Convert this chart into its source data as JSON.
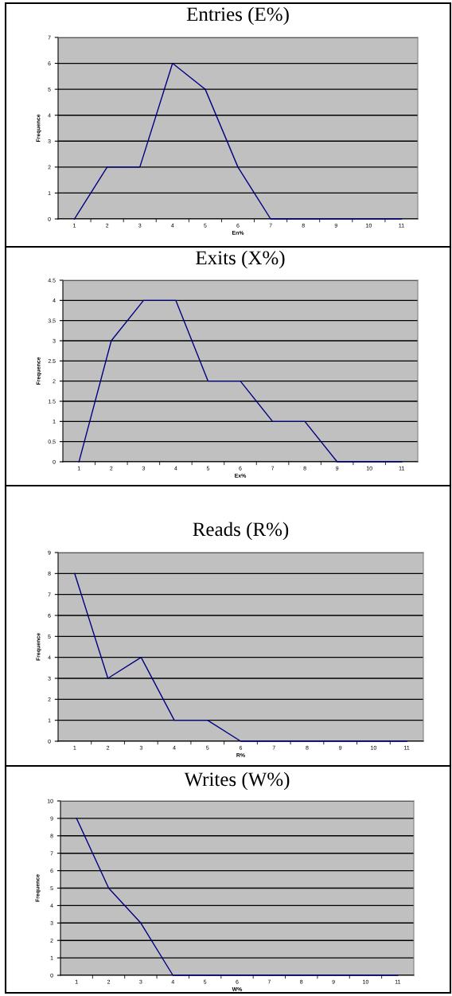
{
  "chart_data": [
    {
      "type": "line",
      "title": "Entries (E%)",
      "xlabel": "En%",
      "ylabel": "Frequence",
      "categories": [
        "1",
        "2",
        "3",
        "4",
        "5",
        "6",
        "7",
        "8",
        "9",
        "10",
        "11"
      ],
      "series": [
        {
          "color": "#000080",
          "values": [
            0,
            2,
            2,
            6,
            5,
            2,
            0,
            0,
            0,
            0,
            0
          ]
        }
      ],
      "ylim": [
        0,
        7
      ],
      "yticks": [
        0,
        1,
        2,
        3,
        4,
        5,
        6,
        7
      ],
      "grid": "y",
      "marker": "none",
      "line_style": "solid"
    },
    {
      "type": "line",
      "title": "Exits (X%)",
      "xlabel": "Ex%",
      "ylabel": "Frequence",
      "categories": [
        "1",
        "2",
        "3",
        "4",
        "5",
        "6",
        "7",
        "8",
        "9",
        "10",
        "11"
      ],
      "series": [
        {
          "color": "#000080",
          "values": [
            0,
            3,
            4,
            4,
            2,
            2,
            1,
            1,
            0,
            0,
            0
          ]
        }
      ],
      "ylim": [
        0,
        4.5
      ],
      "yticks": [
        0,
        0.5,
        1,
        1.5,
        2,
        2.5,
        3,
        3.5,
        4,
        4.5
      ],
      "grid": "y",
      "marker": "none",
      "line_style": "solid"
    },
    {
      "type": "line",
      "title": "Reads (R%)",
      "xlabel": "R%",
      "ylabel": "Frequence",
      "categories": [
        "1",
        "2",
        "3",
        "4",
        "5",
        "6",
        "7",
        "8",
        "9",
        "10",
        "11"
      ],
      "series": [
        {
          "color": "#000080",
          "values": [
            8,
            3,
            4,
            1,
            1,
            0,
            0,
            0,
            0,
            0,
            0
          ]
        }
      ],
      "ylim": [
        0,
        9
      ],
      "yticks": [
        0,
        1,
        2,
        3,
        4,
        5,
        6,
        7,
        8,
        9
      ],
      "grid": "y",
      "marker": "none",
      "line_style": "solid"
    },
    {
      "type": "line",
      "title": "Writes (W%)",
      "xlabel": "W%",
      "ylabel": "Frequence",
      "categories": [
        "1",
        "2",
        "3",
        "4",
        "5",
        "6",
        "7",
        "8",
        "9",
        "10",
        "11"
      ],
      "series": [
        {
          "color": "#000080",
          "values": [
            9,
            5,
            3,
            0,
            0,
            0,
            0,
            0,
            0,
            0,
            0
          ]
        }
      ],
      "ylim": [
        0,
        10
      ],
      "yticks": [
        0,
        1,
        2,
        3,
        4,
        5,
        6,
        7,
        8,
        9,
        10
      ],
      "grid": "y",
      "marker": "none",
      "line_style": "solid"
    }
  ]
}
